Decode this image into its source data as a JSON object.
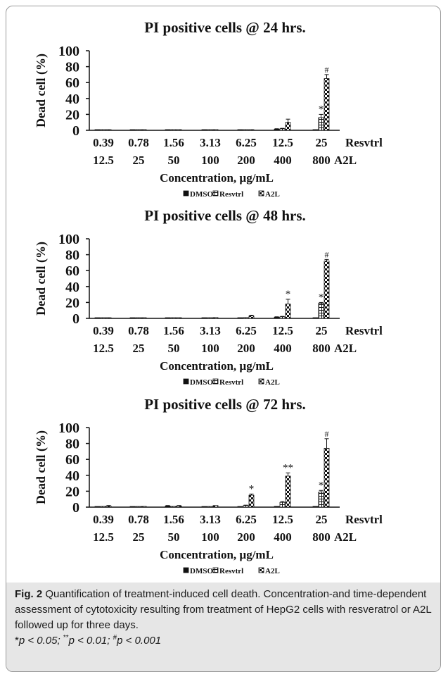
{
  "chart_data": [
    {
      "type": "bar",
      "title": "PI positive cells @ 24 hrs.",
      "ylabel": "Dead cell (%)",
      "xlabel": "Concentration, µg/mL",
      "ylim": [
        0,
        100
      ],
      "yticks": [
        "100",
        "80",
        "60",
        "40",
        "20",
        "0"
      ],
      "categories": [
        [
          "0.39",
          "12.5"
        ],
        [
          "0.78",
          "25"
        ],
        [
          "1.56",
          "50"
        ],
        [
          "3.13",
          "100"
        ],
        [
          "6.25",
          "200"
        ],
        [
          "12.5",
          "400"
        ],
        [
          "25",
          "800"
        ]
      ],
      "row_labels": [
        "Resvtrl",
        "A2L"
      ],
      "series": [
        {
          "name": "DMSO",
          "values": [
            0.5,
            0.5,
            0.3,
            0.3,
            0.5,
            1.5,
            0.5
          ],
          "errors": [
            0,
            0,
            0,
            0,
            0,
            0.5,
            0
          ]
        },
        {
          "name": "Resvtrl",
          "values": [
            0.5,
            0.8,
            0.5,
            0.5,
            0.8,
            2,
            16
          ],
          "errors": [
            0,
            0,
            0,
            0,
            0,
            0.5,
            4
          ]
        },
        {
          "name": "A2L",
          "values": [
            0.5,
            0.5,
            0.5,
            0.8,
            0.8,
            10,
            65
          ],
          "errors": [
            0,
            0,
            0,
            0,
            0,
            4,
            5
          ]
        }
      ],
      "annotations": [
        {
          "category": 6,
          "series": 1,
          "text": "*"
        },
        {
          "category": 6,
          "series": 2,
          "text": "#"
        }
      ],
      "legend": [
        "DMSO",
        "Resvtrl",
        "A2L"
      ]
    },
    {
      "type": "bar",
      "title": "PI positive cells @ 48 hrs.",
      "ylabel": "Dead cell (%)",
      "xlabel": "Concentration, µg/mL",
      "ylim": [
        0,
        100
      ],
      "yticks": [
        "100",
        "80",
        "60",
        "40",
        "20",
        "0"
      ],
      "categories": [
        [
          "0.39",
          "12.5"
        ],
        [
          "0.78",
          "25"
        ],
        [
          "1.56",
          "50"
        ],
        [
          "3.13",
          "100"
        ],
        [
          "6.25",
          "200"
        ],
        [
          "12.5",
          "400"
        ],
        [
          "25",
          "800"
        ]
      ],
      "row_labels": [
        "Resvtrl",
        "A2L"
      ],
      "series": [
        {
          "name": "DMSO",
          "values": [
            0.5,
            0.5,
            0.5,
            0.5,
            0.5,
            1.5,
            0.5
          ],
          "errors": [
            0,
            0,
            0,
            0,
            0,
            0.5,
            0
          ]
        },
        {
          "name": "Resvtrl",
          "values": [
            0.5,
            0.5,
            0.5,
            0.5,
            1,
            2,
            19
          ],
          "errors": [
            0,
            0,
            0,
            0,
            0,
            0.5,
            1
          ]
        },
        {
          "name": "A2L",
          "values": [
            0.5,
            0.5,
            0.8,
            1,
            3,
            18,
            72
          ],
          "errors": [
            0,
            0,
            0,
            0,
            1,
            6,
            2
          ]
        }
      ],
      "annotations": [
        {
          "category": 5,
          "series": 2,
          "text": "*"
        },
        {
          "category": 6,
          "series": 1,
          "text": "*"
        },
        {
          "category": 6,
          "series": 2,
          "text": "#"
        }
      ],
      "legend": [
        "DMSO",
        "Resvtrl",
        "A2L"
      ]
    },
    {
      "type": "bar",
      "title": "PI positive cells @ 72 hrs.",
      "ylabel": "Dead cell (%)",
      "xlabel": "Concentration, µg/mL",
      "ylim": [
        0,
        100
      ],
      "yticks": [
        "100",
        "80",
        "60",
        "40",
        "20",
        "0"
      ],
      "categories": [
        [
          "0.39",
          "12.5"
        ],
        [
          "0.78",
          "25"
        ],
        [
          "1.56",
          "50"
        ],
        [
          "3.13",
          "100"
        ],
        [
          "6.25",
          "200"
        ],
        [
          "12.5",
          "400"
        ],
        [
          "25",
          "800"
        ]
      ],
      "row_labels": [
        "Resvtrl",
        "A2L"
      ],
      "series": [
        {
          "name": "DMSO",
          "values": [
            0.5,
            0.5,
            1.5,
            0.5,
            0.5,
            1,
            1
          ],
          "errors": [
            0,
            0,
            0.5,
            0,
            0,
            0,
            0
          ]
        },
        {
          "name": "Resvtrl",
          "values": [
            1,
            0.5,
            1,
            0.5,
            2,
            6,
            19
          ],
          "errors": [
            0,
            0,
            0,
            0,
            0.5,
            1,
            2
          ]
        },
        {
          "name": "A2L",
          "values": [
            1.5,
            1,
            1.5,
            2,
            15,
            39,
            74
          ],
          "errors": [
            0.5,
            0,
            0.5,
            0,
            1.5,
            4,
            12
          ]
        }
      ],
      "annotations": [
        {
          "category": 4,
          "series": 2,
          "text": "*"
        },
        {
          "category": 5,
          "series": 2,
          "text": "**"
        },
        {
          "category": 6,
          "series": 1,
          "text": "*"
        },
        {
          "category": 6,
          "series": 2,
          "text": "#"
        }
      ],
      "legend": [
        "DMSO",
        "Resvtrl",
        "A2L"
      ]
    }
  ],
  "caption": {
    "label": "Fig. 2",
    "text": "Quantification of treatment-induced cell death. Concentration-and time-dependent assessment of cytotoxicity resulting from treatment of HepG2 cells with resveratrol or A2L followed up for three days.",
    "p1": "p < 0.05; ",
    "p2": "p < 0.01; ",
    "p3": "p < 0.001",
    "sym1": "*",
    "sym2": "**",
    "sym3": "#"
  },
  "colors": {
    "dmso": "#111111",
    "frame": "#9a9a9a",
    "caption_bg": "#e6e6e6"
  }
}
